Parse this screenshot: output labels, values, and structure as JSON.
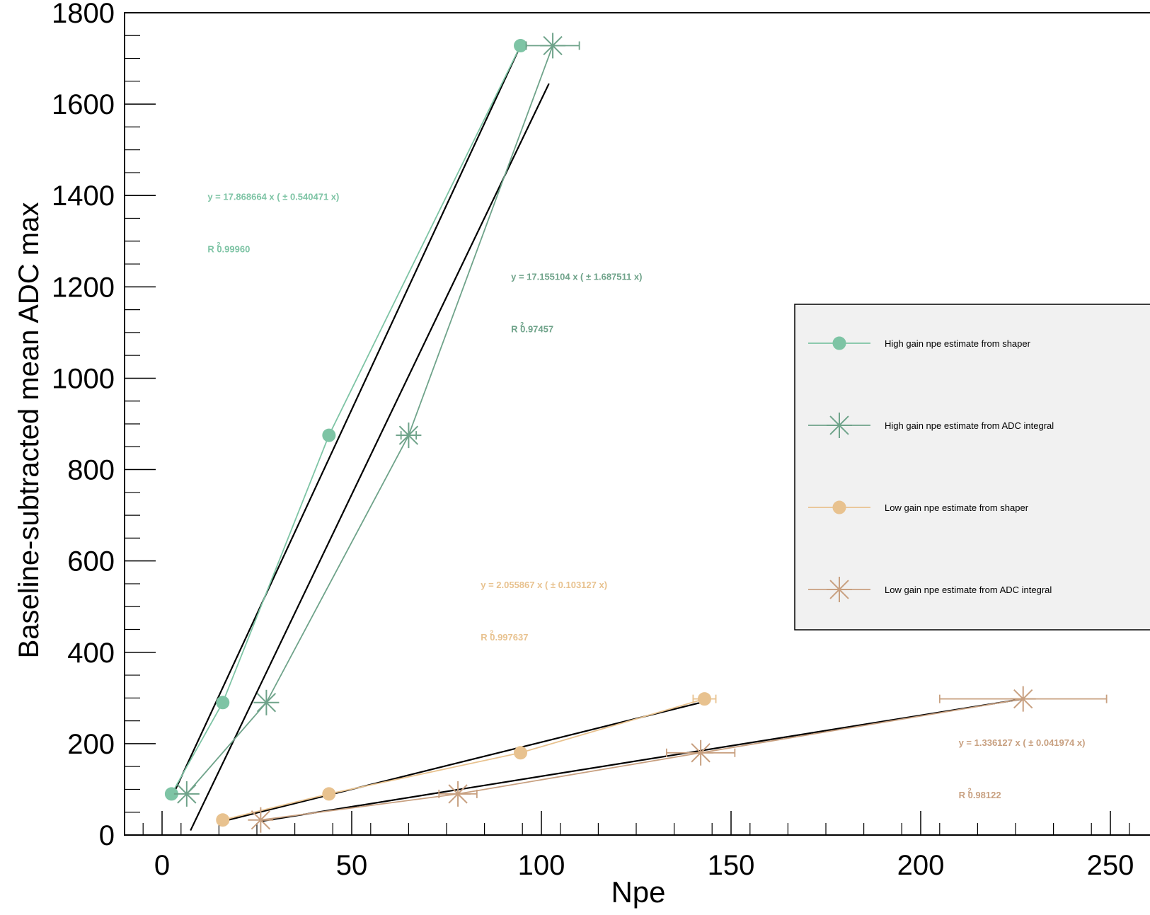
{
  "chart_data": {
    "type": "scatter",
    "title": "",
    "xlabel": "Npe",
    "ylabel": "Baseline-subtracted mean ADC max",
    "xlim": [
      -10,
      262
    ],
    "ylim": [
      0,
      1800
    ],
    "x_ticks": [
      0,
      50,
      100,
      150,
      200,
      250
    ],
    "x_tick_labels": [
      "0",
      "50",
      "100",
      "150",
      "200",
      "250"
    ],
    "y_ticks": [
      0,
      200,
      400,
      600,
      800,
      1000,
      1200,
      1400,
      1600,
      1800
    ],
    "y_tick_labels": [
      "0",
      "200",
      "400",
      "600",
      "800",
      "1000",
      "1200",
      "1400",
      "1600",
      "1800"
    ],
    "grid": false,
    "legend_position": "right",
    "series": [
      {
        "name": "High gain npe estimate from shaper",
        "color": "#7ec4a5",
        "marker": "circle",
        "points": [
          {
            "x": 2.5,
            "y": 90,
            "xerr": 0
          },
          {
            "x": 16,
            "y": 290,
            "xerr": 0
          },
          {
            "x": 44,
            "y": 875,
            "xerr": 0
          },
          {
            "x": 94.5,
            "y": 1728,
            "xerr": 0
          }
        ],
        "fit": {
          "x": [
            3.0,
            94.5
          ],
          "y": [
            90,
            1728
          ]
        },
        "fit_label": {
          "equation": "y = 17.868664 x (   ± 0.540471 x)",
          "r2": "R  0.99960",
          "r2_sup": "2",
          "x": 12,
          "y": 1390
        }
      },
      {
        "name": "High gain npe estimate from ADC integral",
        "color": "#6fa38a",
        "marker": "star",
        "points": [
          {
            "x": 6.5,
            "y": 90,
            "xerr": 0
          },
          {
            "x": 27.5,
            "y": 290,
            "xerr": 0
          },
          {
            "x": 65,
            "y": 875,
            "xerr": 2
          },
          {
            "x": 103,
            "y": 1728,
            "xerr": 7
          }
        ],
        "fit": {
          "x": [
            7.5,
            102
          ],
          "y": [
            10,
            1645
          ]
        },
        "fit_label": {
          "equation": "y = 17.155104 x (   ± 1.687511 x)",
          "r2": "R  0.97457",
          "r2_sup": "2",
          "x": 92,
          "y": 1215
        }
      },
      {
        "name": "Low gain npe estimate from shaper",
        "color": "#e8c28f",
        "marker": "circle",
        "points": [
          {
            "x": 16,
            "y": 33,
            "xerr": 0
          },
          {
            "x": 44,
            "y": 90,
            "xerr": 0
          },
          {
            "x": 94.5,
            "y": 180,
            "xerr": 0
          },
          {
            "x": 143,
            "y": 298,
            "xerr": 3
          }
        ],
        "fit": {
          "x": [
            16,
            142
          ],
          "y": [
            30,
            290
          ]
        },
        "fit_label": {
          "equation": "y = 2.055867 x (   ± 0.103127 x)",
          "r2": "R  0.997637",
          "r2_sup": "2",
          "x": 84,
          "y": 541
        }
      },
      {
        "name": "Low gain npe estimate from ADC integral",
        "color": "#c8a080",
        "marker": "star",
        "points": [
          {
            "x": 26,
            "y": 33,
            "xerr": 0
          },
          {
            "x": 78,
            "y": 90,
            "xerr": 5
          },
          {
            "x": 142,
            "y": 180,
            "xerr": 9
          },
          {
            "x": 227,
            "y": 298,
            "xerr": 22
          }
        ],
        "fit": {
          "x": [
            26,
            227
          ],
          "y": [
            30,
            298
          ]
        },
        "fit_label": {
          "equation": "y = 1.336127 x (   ± 0.041974 x)",
          "r2": "R  0.98122",
          "r2_sup": "2",
          "x": 210,
          "y": 195
        }
      }
    ]
  }
}
